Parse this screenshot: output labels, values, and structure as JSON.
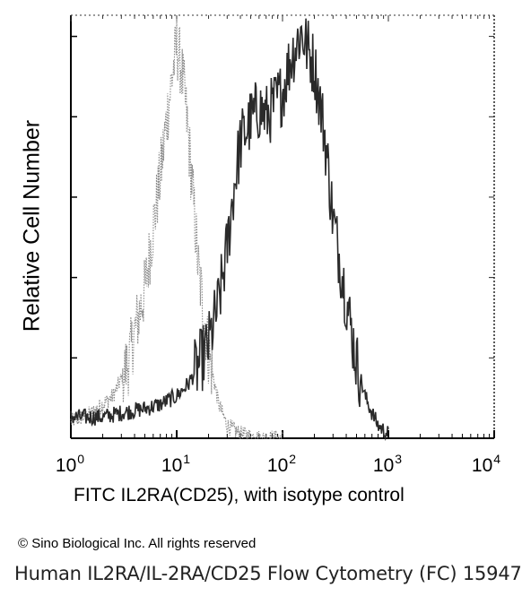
{
  "chart_data": {
    "type": "histogram",
    "title": "",
    "xlabel": "FITC IL2RA(CD25), with isotype control",
    "ylabel": "Relative Cell Number",
    "x_scale": "log",
    "xlim": [
      1,
      10000
    ],
    "ylim": [
      0,
      100
    ],
    "grid": false,
    "x_ticks": [
      {
        "base": "10",
        "exp": "0"
      },
      {
        "base": "10",
        "exp": "1"
      },
      {
        "base": "10",
        "exp": "2"
      },
      {
        "base": "10",
        "exp": "3"
      },
      {
        "base": "10",
        "exp": "4"
      }
    ],
    "series": [
      {
        "style": "dotted-light",
        "color": "#8a8a8a",
        "x": [
          1,
          1.3,
          1.6,
          2,
          2.5,
          3,
          3.5,
          4,
          5,
          6,
          7,
          8,
          9,
          10,
          11,
          12,
          13,
          14,
          15,
          16,
          18,
          20,
          25,
          30,
          40,
          60,
          100
        ],
        "y": [
          4,
          5,
          6,
          8,
          10,
          14,
          18,
          25,
          35,
          50,
          62,
          75,
          85,
          93,
          88,
          80,
          70,
          60,
          50,
          40,
          30,
          20,
          8,
          3,
          1,
          0,
          0
        ]
      },
      {
        "style": "dark",
        "color": "#2a2a2a",
        "x": [
          1,
          2,
          3,
          5,
          7,
          10,
          13,
          16,
          20,
          25,
          30,
          35,
          40,
          50,
          60,
          70,
          80,
          100,
          120,
          150,
          200,
          250,
          300,
          400,
          500,
          600,
          700,
          800,
          1000
        ],
        "y": [
          5,
          5,
          6,
          7,
          8,
          10,
          13,
          17,
          22,
          32,
          45,
          60,
          70,
          75,
          78,
          76,
          78,
          82,
          90,
          96,
          88,
          72,
          52,
          33,
          18,
          10,
          6,
          3,
          1
        ]
      }
    ]
  },
  "copyright": "© Sino Biological Inc. All rights reserved",
  "caption": "Human IL2RA/IL-2RA/CD25 Flow Cytometry (FC) 15947"
}
